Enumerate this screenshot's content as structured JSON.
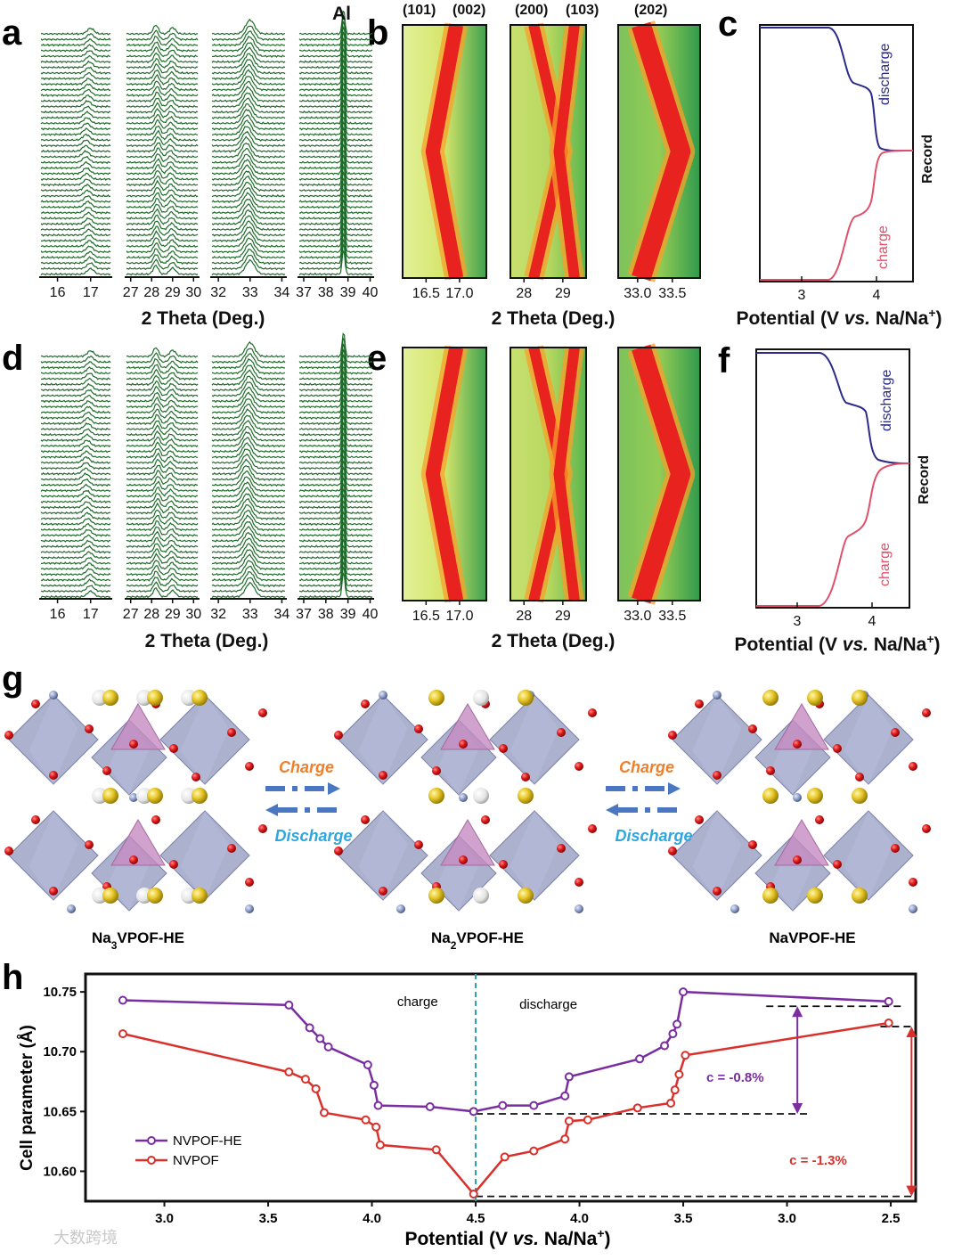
{
  "colors": {
    "xrd_line": "#1f6b2a",
    "discharge": "#2b2a8c",
    "charge": "#e0506a",
    "he_series": "#7a2da0",
    "nvpof_series": "#d9302c",
    "charge_arrow_label": "#ef7f2a",
    "discharge_arrow_label": "#2fa6dd",
    "arrow": "#4a76c2",
    "octahedron": "#9da3c6",
    "tetrahedron": "#c58bc0",
    "oxygen": "#d41818",
    "sodium_yellow": "#e7c72a",
    "sodium_white": "#f0f0f0",
    "fluorine": "#8a9bc4",
    "vline": "#2aa3a3"
  },
  "panels": {
    "a": {
      "label": "a",
      "peak_label": "Al",
      "xlabel": "2 Theta (Deg.)",
      "segments": [
        {
          "ticks": [
            "16",
            "17"
          ]
        },
        {
          "ticks": [
            "27",
            "28",
            "29",
            "30"
          ]
        },
        {
          "ticks": [
            "32",
            "33",
            "34"
          ]
        },
        {
          "ticks": [
            "37",
            "38",
            "39",
            "40"
          ]
        }
      ]
    },
    "b": {
      "label": "b",
      "xlabel": "2 Theta (Deg.)",
      "peak_labels": [
        "(101)",
        "(002)",
        "(200)",
        "(103)",
        "(202)"
      ],
      "segments": [
        {
          "ticks": [
            "16.5",
            "17.0"
          ]
        },
        {
          "ticks": [
            "28",
            "29"
          ]
        },
        {
          "ticks": [
            "33.0",
            "33.5"
          ]
        }
      ]
    },
    "c": {
      "label": "c",
      "xlabel": "Potential (V vs. Na/Na+)",
      "ylabel": "Record",
      "discharge_label": "discharge",
      "charge_label": "charge",
      "ticks": [
        "3",
        "4"
      ]
    },
    "d": {
      "label": "d",
      "xlabel": "2 Theta (Deg.)",
      "segments": [
        {
          "ticks": [
            "16",
            "17"
          ]
        },
        {
          "ticks": [
            "27",
            "28",
            "29",
            "30"
          ]
        },
        {
          "ticks": [
            "32",
            "33",
            "34"
          ]
        },
        {
          "ticks": [
            "37",
            "38",
            "39",
            "40"
          ]
        }
      ]
    },
    "e": {
      "label": "e",
      "xlabel": "2 Theta (Deg.)",
      "segments": [
        {
          "ticks": [
            "16.5",
            "17.0"
          ]
        },
        {
          "ticks": [
            "28",
            "29"
          ]
        },
        {
          "ticks": [
            "33.0",
            "33.5"
          ]
        }
      ]
    },
    "f": {
      "label": "f",
      "xlabel": "Potential (V vs. Na/Na+)",
      "ylabel": "Record",
      "discharge_label": "discharge",
      "charge_label": "charge",
      "ticks": [
        "3",
        "4"
      ]
    },
    "g": {
      "label": "g",
      "structures": [
        "Na3VPOF-HE",
        "Na2VPOF-HE",
        "NaVPOF-HE"
      ],
      "charge_label": "Charge",
      "discharge_label": "Discharge"
    },
    "h": {
      "label": "h",
      "watermark": "大数跨境"
    }
  },
  "chart_data": {
    "type": "line",
    "xlabel": "Potential (V vs. Na/Na+)",
    "ylabel": "Cell parameter (Å)",
    "x_ticks": [
      "3.0",
      "3.5",
      "4.0",
      "4.5",
      "4.0",
      "3.5",
      "3.0",
      "2.5"
    ],
    "ylim": [
      10.575,
      10.765
    ],
    "y_ticks": [
      "10.60",
      "10.65",
      "10.70",
      "10.75"
    ],
    "legend_position": "bottom-left",
    "charge_label": "charge",
    "discharge_label": "discharge",
    "annotations": [
      "c = -0.8%",
      "c = -1.3%"
    ],
    "series": [
      {
        "name": "NVPOF-HE",
        "points": [
          [
            2.8,
            10.743
          ],
          [
            3.6,
            10.739
          ],
          [
            3.7,
            10.72
          ],
          [
            3.75,
            10.711
          ],
          [
            3.79,
            10.704
          ],
          [
            3.98,
            10.689
          ],
          [
            4.01,
            10.672
          ],
          [
            4.03,
            10.655
          ],
          [
            4.28,
            10.654
          ],
          [
            4.49,
            10.65
          ],
          [
            4.63,
            10.655
          ],
          [
            4.78,
            10.655
          ],
          [
            4.93,
            10.663
          ],
          [
            4.95,
            10.679
          ],
          [
            5.29,
            10.694
          ],
          [
            5.41,
            10.705
          ],
          [
            5.45,
            10.715
          ],
          [
            5.47,
            10.723
          ],
          [
            5.5,
            10.75
          ],
          [
            6.49,
            10.742
          ]
        ]
      },
      {
        "name": "NVPOF",
        "points": [
          [
            2.8,
            10.715
          ],
          [
            3.6,
            10.683
          ],
          [
            3.68,
            10.677
          ],
          [
            3.73,
            10.669
          ],
          [
            3.77,
            10.649
          ],
          [
            3.97,
            10.643
          ],
          [
            4.02,
            10.637
          ],
          [
            4.04,
            10.622
          ],
          [
            4.31,
            10.618
          ],
          [
            4.49,
            10.581
          ],
          [
            4.64,
            10.612
          ],
          [
            4.78,
            10.617
          ],
          [
            4.93,
            10.627
          ],
          [
            4.95,
            10.642
          ],
          [
            5.04,
            10.643
          ],
          [
            5.28,
            10.653
          ],
          [
            5.44,
            10.657
          ],
          [
            5.46,
            10.668
          ],
          [
            5.48,
            10.681
          ],
          [
            5.51,
            10.697
          ],
          [
            6.49,
            10.724
          ]
        ]
      }
    ]
  }
}
